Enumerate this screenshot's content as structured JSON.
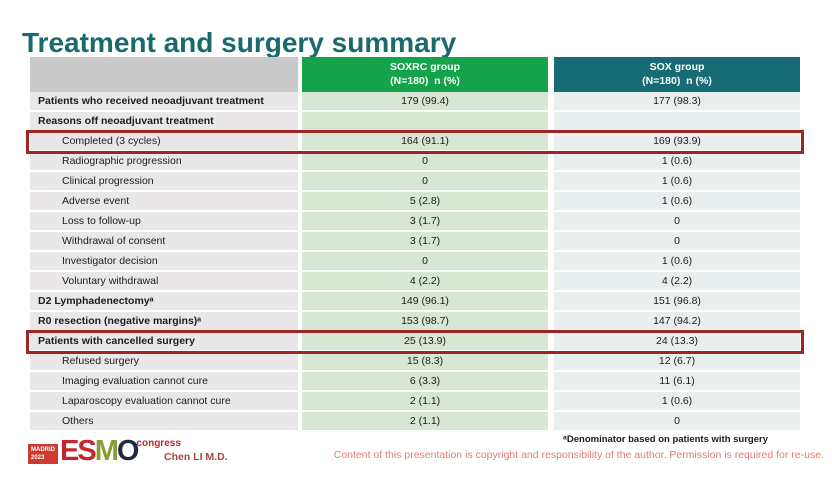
{
  "title": "Treatment and surgery summary",
  "colors": {
    "title": "#186a6d",
    "green": "#14a24b",
    "teal": "#166b74",
    "red": "#9e2723"
  },
  "table": {
    "columns": [
      {
        "name": "",
        "sub": ""
      },
      {
        "name": "SOXRC group",
        "sub": "(N=180)  n (%)"
      },
      {
        "name": "SOX group",
        "sub": "(N=180)  n (%)"
      }
    ],
    "rows": [
      {
        "label": "Patients who received neoadjuvant treatment",
        "soxrc": "179 (99.4)",
        "sox": "177 (98.3)",
        "bold": true,
        "indent": false,
        "highlight": false
      },
      {
        "label": "Reasons off neoadjuvant treatment",
        "soxrc": "",
        "sox": "",
        "bold": true,
        "indent": false,
        "highlight": false
      },
      {
        "label": "Completed (3 cycles)",
        "soxrc": "164 (91.1)",
        "sox": "169 (93.9)",
        "bold": false,
        "indent": true,
        "highlight": true
      },
      {
        "label": "Radiographic progression",
        "soxrc": "0",
        "sox": "1 (0.6)",
        "bold": false,
        "indent": true,
        "highlight": false
      },
      {
        "label": "Clinical progression",
        "soxrc": "0",
        "sox": "1 (0.6)",
        "bold": false,
        "indent": true,
        "highlight": false
      },
      {
        "label": "Adverse event",
        "soxrc": "5 (2.8)",
        "sox": "1 (0.6)",
        "bold": false,
        "indent": true,
        "highlight": false
      },
      {
        "label": "Loss to follow-up",
        "soxrc": "3 (1.7)",
        "sox": "0",
        "bold": false,
        "indent": true,
        "highlight": false
      },
      {
        "label": "Withdrawal of consent",
        "soxrc": "3 (1.7)",
        "sox": "0",
        "bold": false,
        "indent": true,
        "highlight": false
      },
      {
        "label": "Investigator decision",
        "soxrc": "0",
        "sox": "1 (0.6)",
        "bold": false,
        "indent": true,
        "highlight": false
      },
      {
        "label": "Voluntary withdrawal",
        "soxrc": "4 (2.2)",
        "sox": "4 (2.2)",
        "bold": false,
        "indent": true,
        "highlight": false
      },
      {
        "label": "D2 Lymphadenectomyᵃ",
        "soxrc": "149 (96.1)",
        "sox": "151 (96.8)",
        "bold": true,
        "indent": false,
        "highlight": false
      },
      {
        "label": "R0 resection (negative margins)ᵃ",
        "soxrc": "153 (98.7)",
        "sox": "147 (94.2)",
        "bold": true,
        "indent": false,
        "highlight": false
      },
      {
        "label": "Patients with cancelled surgery",
        "soxrc": "25 (13.9)",
        "sox": "24 (13.3)",
        "bold": true,
        "indent": false,
        "highlight": true
      },
      {
        "label": "Refused surgery",
        "soxrc": "15 (8.3)",
        "sox": "12 (6.7)",
        "bold": false,
        "indent": true,
        "highlight": false
      },
      {
        "label": "Imaging evaluation cannot cure",
        "soxrc": "6 (3.3)",
        "sox": "11 (6.1)",
        "bold": false,
        "indent": true,
        "highlight": false
      },
      {
        "label": "Laparoscopy evaluation cannot cure",
        "soxrc": "2 (1.1)",
        "sox": "1 (0.6)",
        "bold": false,
        "indent": true,
        "highlight": false
      },
      {
        "label": "Others",
        "soxrc": "2 (1.1)",
        "sox": "0",
        "bold": false,
        "indent": true,
        "highlight": false
      }
    ]
  },
  "footer": {
    "logo": {
      "city": "MADRID",
      "year": "2023",
      "letters": [
        "E",
        "S",
        "M",
        "O"
      ],
      "congress": "congress"
    },
    "author": "Chen LI M.D.",
    "footnote": "ᵃDenominator based on patients with surgery",
    "copyright": "Content of this presentation is copyright and responsibility of the author. Permission is required for re-use."
  }
}
